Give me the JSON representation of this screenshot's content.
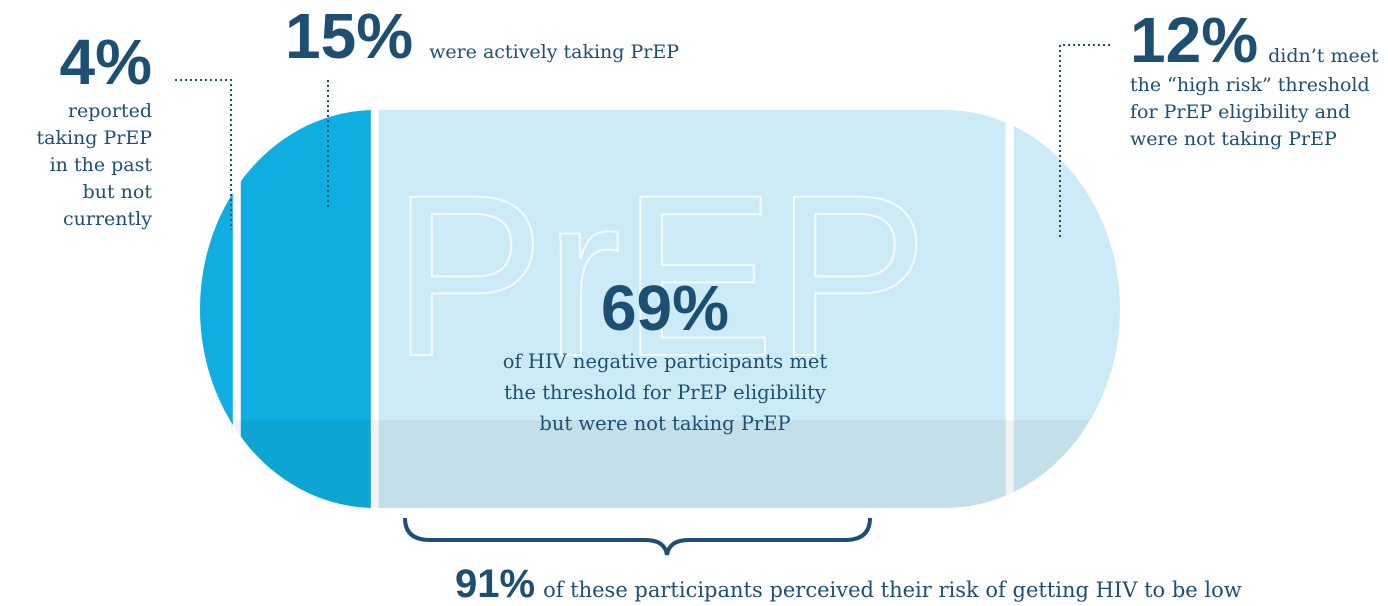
{
  "chart_data": {
    "type": "pill",
    "values": [
      4,
      15,
      69,
      12
    ],
    "value_labels": [
      "4%",
      "15%",
      "69%",
      "12%"
    ],
    "categories": [
      "reported taking PrEP in the past but not currently",
      "were actively taking PrEP",
      "of HIV negative participants met the threshold for PrEP eligibility but were not taking PrEP",
      "didn’t meet the “high risk” threshold for PrEP eligibility and were not taking PrEP"
    ],
    "colors": [
      "#0fade0",
      "#0fade0",
      "#cdebf7",
      "#cdebf7"
    ],
    "watermark": "PrEP",
    "note": {
      "value": 91,
      "value_label": "91%",
      "text": "of these participants perceived their risk of getting HIV to be low"
    }
  }
}
